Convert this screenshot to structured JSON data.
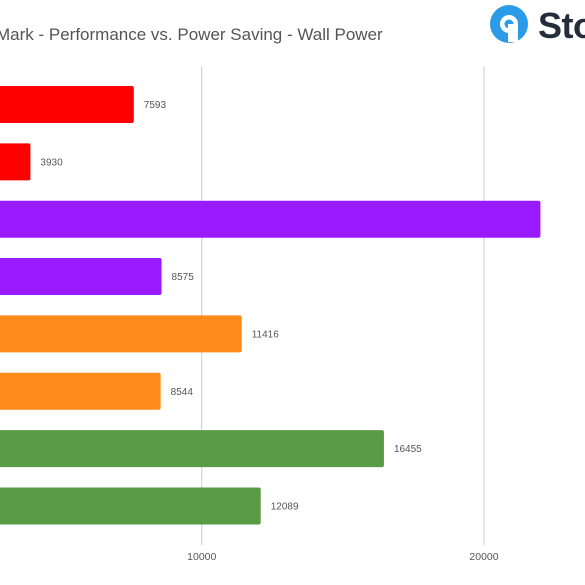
{
  "header": {
    "title": "Mark - Performance vs. Power Saving - Wall Power",
    "logo_text": "Sto"
  },
  "colors": {
    "red": "#ff0000",
    "purple": "#9a1aff",
    "orange": "#ff8a1c",
    "green": "#5a9c46",
    "logo_blue": "#2b9be8",
    "logo_dark": "#252d3a",
    "grid": "#cccccc"
  },
  "chart_data": {
    "type": "bar",
    "orientation": "horizontal",
    "title": "Mark - Performance vs. Power Saving - Wall Power",
    "xlim": [
      0,
      22000
    ],
    "xticks": [
      10000,
      20000
    ],
    "xtick_labels": [
      "10000",
      "20000"
    ],
    "grid": true,
    "bars": [
      {
        "value": 7593,
        "label": "7593",
        "color": "red"
      },
      {
        "value": 3930,
        "label": "3930",
        "color": "red"
      },
      {
        "value": 22000,
        "label": "",
        "color": "purple"
      },
      {
        "value": 8575,
        "label": "8575",
        "color": "purple"
      },
      {
        "value": 11416,
        "label": "11416",
        "color": "orange"
      },
      {
        "value": 8544,
        "label": "8544",
        "color": "orange"
      },
      {
        "value": 16455,
        "label": "16455",
        "color": "green"
      },
      {
        "value": 12089,
        "label": "12089",
        "color": "green"
      }
    ]
  }
}
